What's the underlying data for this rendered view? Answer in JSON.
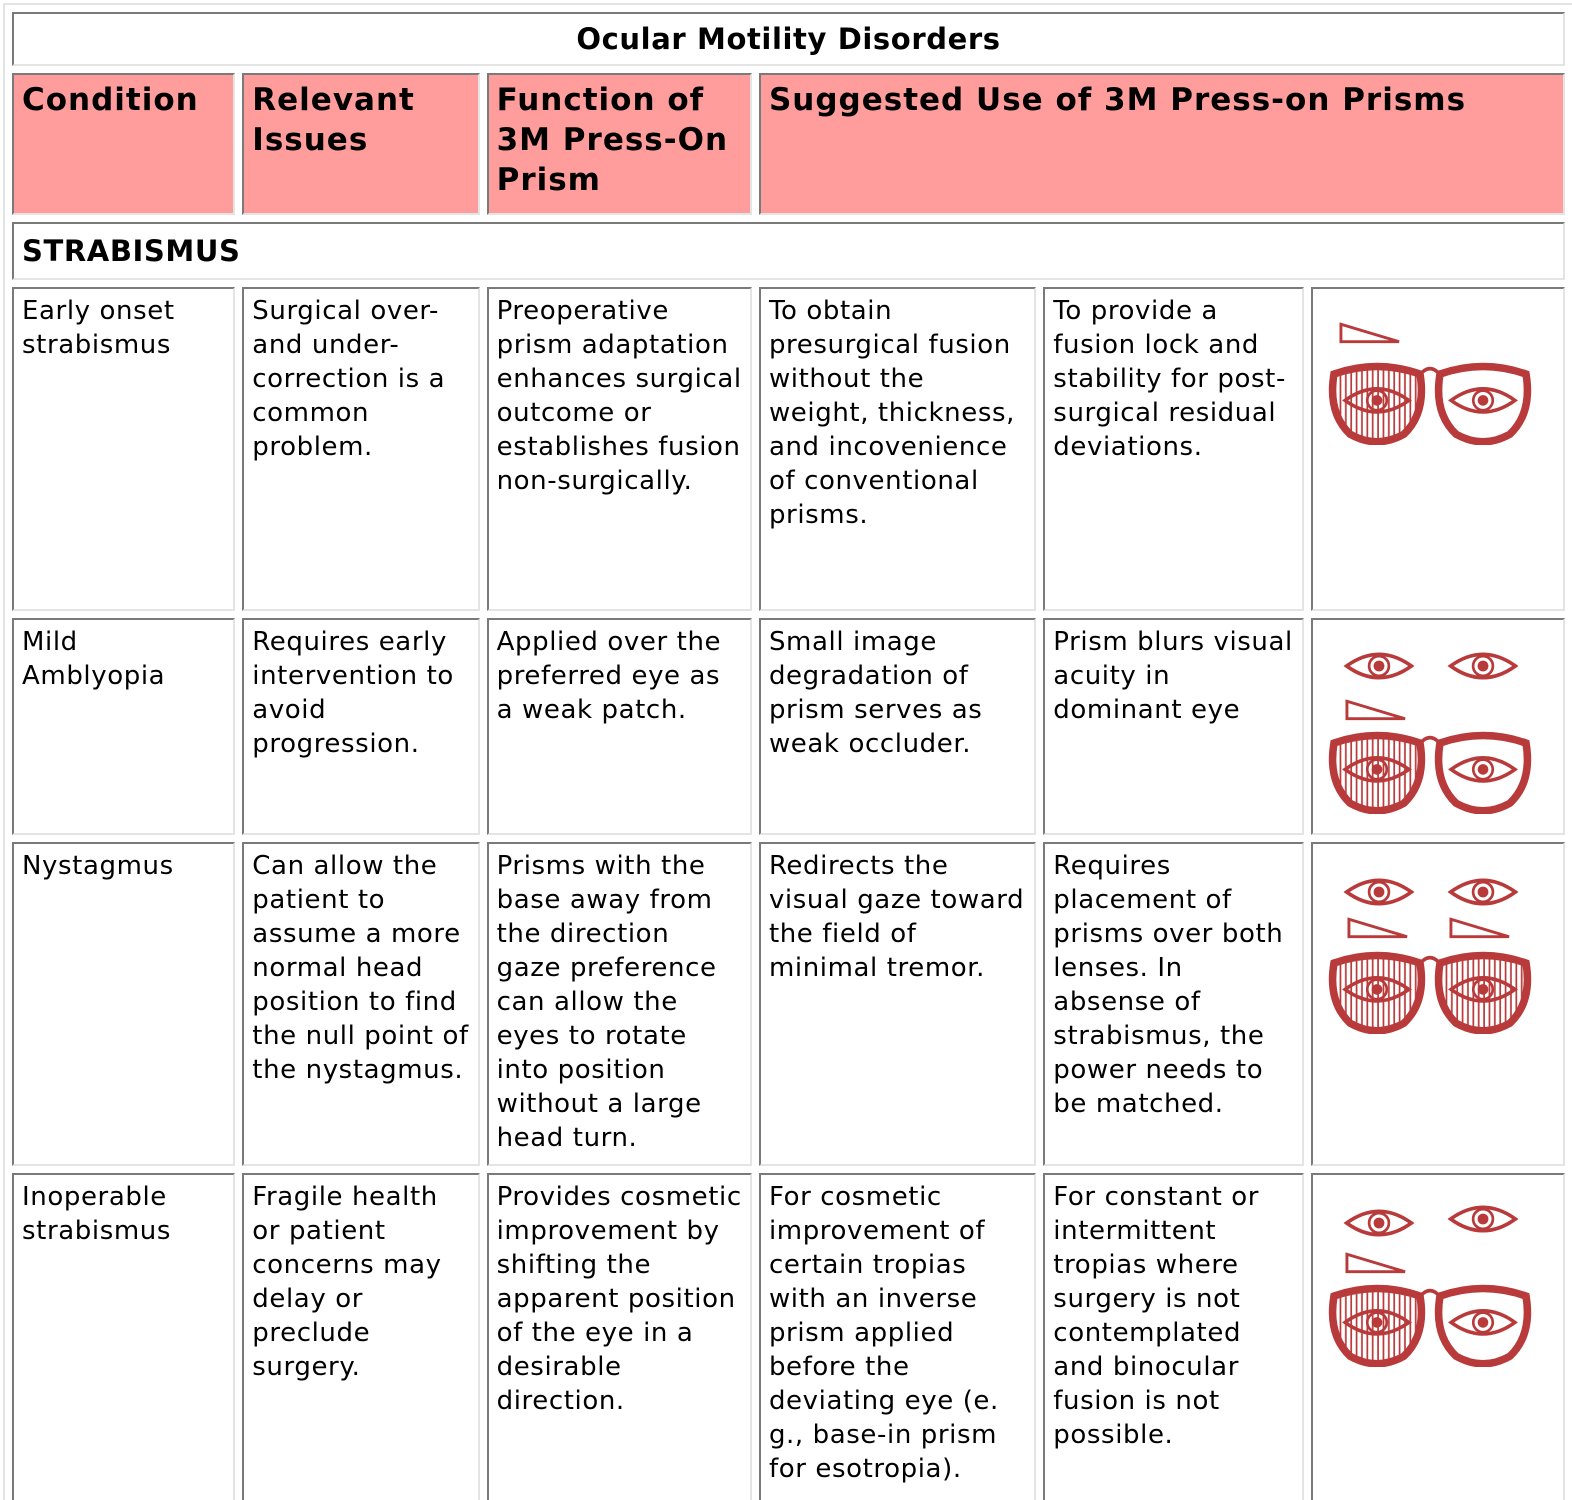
{
  "title": "Ocular Motility Disorders",
  "headers": [
    "Condition",
    "Relevant Issues",
    "Function of 3M Press-On Prism",
    "Suggested Use of 3M Press-on Prisms"
  ],
  "section": "STRABISMUS",
  "rows": [
    [
      "Early onset strabismus",
      "Surgical over- and under-correction is a common problem.",
      "Preoperative prism adaptation enhances surgical outcome or establishes fusion non-surgically.",
      "To obtain presurgical fusion without the weight, thickness, and incovenience of conventional prisms.",
      "To provide a fusion lock and stability for post-surgical residual deviations."
    ],
    [
      "Mild Amblyopia",
      "Requires early intervention to avoid progression.",
      "Applied over the preferred eye as a weak patch.",
      "Small image degradation of prism serves as weak occluder.",
      "Prism blurs visual acuity in dominant eye"
    ],
    [
      "Nystagmus",
      "Can allow the patient to assume a more normal head position to find the null point of the nystagmus.",
      "Prisms with the base away from the direction gaze preference can allow the eyes to rotate into position without a large head turn.",
      "Redirects the visual gaze toward the field of minimal tremor.",
      "Requires placement of prisms over both lenses. In absense of strabismus, the power needs to be matched."
    ],
    [
      "Inoperable strabismus",
      "Fragile health or patient concerns may delay or preclude surgery.",
      "Provides cosmetic improvement by shifting the apparent position of the eye in a desirable direction.",
      "For cosmetic improvement of certain tropias with an inverse prism applied before the deviating eye (e. g., base-in prism for esotropia).",
      "For constant or intermittent tropias where surgery is not contemplated and binocular fusion is not possible."
    ]
  ]
}
